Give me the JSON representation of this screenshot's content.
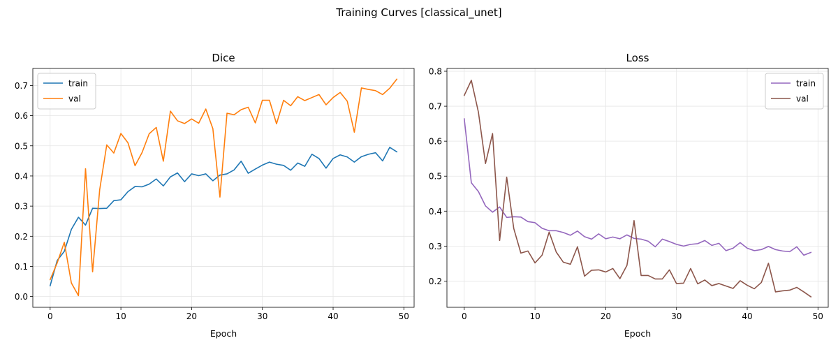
{
  "figure_title": "Training Curves [classical_unet]",
  "colors": {
    "train_dice": "#1f77b4",
    "val_dice": "#ff7f0e",
    "train_loss": "#9467bd",
    "val_loss": "#8c564b",
    "grid": "#e5e5e5"
  },
  "chart_data": [
    {
      "type": "line",
      "title": "Dice",
      "xlabel": "Epoch",
      "ylabel": "",
      "xlim": [
        -2.45,
        51.45
      ],
      "ylim": [
        -0.0356,
        0.7566
      ],
      "xticks": [
        0,
        10,
        20,
        30,
        40,
        50
      ],
      "yticks": [
        0.0,
        0.1,
        0.2,
        0.3,
        0.4,
        0.5,
        0.6,
        0.7
      ],
      "ytick_labels": [
        "0.0",
        "0.1",
        "0.2",
        "0.3",
        "0.4",
        "0.5",
        "0.6",
        "0.7"
      ],
      "grid": true,
      "legend_position": "upper left",
      "series": [
        {
          "name": "train",
          "color_key": "train_dice",
          "values": [
            0.036,
            0.12,
            0.15,
            0.223,
            0.263,
            0.237,
            0.293,
            0.292,
            0.293,
            0.318,
            0.321,
            0.348,
            0.365,
            0.364,
            0.373,
            0.39,
            0.367,
            0.397,
            0.41,
            0.381,
            0.407,
            0.401,
            0.407,
            0.384,
            0.403,
            0.407,
            0.42,
            0.449,
            0.409,
            0.423,
            0.436,
            0.446,
            0.439,
            0.435,
            0.419,
            0.443,
            0.432,
            0.472,
            0.458,
            0.426,
            0.458,
            0.47,
            0.463,
            0.446,
            0.464,
            0.472,
            0.477,
            0.45,
            0.495,
            0.48
          ]
        },
        {
          "name": "val",
          "color_key": "val_dice",
          "values": [
            0.056,
            0.112,
            0.18,
            0.045,
            0.003,
            0.424,
            0.082,
            0.354,
            0.503,
            0.476,
            0.541,
            0.51,
            0.434,
            0.478,
            0.54,
            0.561,
            0.449,
            0.615,
            0.583,
            0.574,
            0.589,
            0.575,
            0.622,
            0.557,
            0.33,
            0.608,
            0.603,
            0.62,
            0.628,
            0.576,
            0.651,
            0.651,
            0.573,
            0.651,
            0.633,
            0.663,
            0.65,
            0.66,
            0.67,
            0.636,
            0.66,
            0.677,
            0.648,
            0.545,
            0.692,
            0.687,
            0.683,
            0.67,
            0.691,
            0.721
          ]
        }
      ]
    },
    {
      "type": "line",
      "title": "Loss",
      "xlabel": "Epoch",
      "ylabel": "",
      "xlim": [
        -2.45,
        51.45
      ],
      "ylim": [
        0.125,
        0.808
      ],
      "xticks": [
        0,
        10,
        20,
        30,
        40,
        50
      ],
      "yticks": [
        0.2,
        0.3,
        0.4,
        0.5,
        0.6,
        0.7,
        0.8
      ],
      "ytick_labels": [
        "0.2",
        "0.3",
        "0.4",
        "0.5",
        "0.6",
        "0.7",
        "0.8"
      ],
      "grid": true,
      "legend_position": "upper right",
      "series": [
        {
          "name": "train",
          "color_key": "train_loss",
          "values": [
            0.664,
            0.481,
            0.456,
            0.415,
            0.397,
            0.412,
            0.382,
            0.384,
            0.383,
            0.37,
            0.367,
            0.351,
            0.344,
            0.344,
            0.339,
            0.331,
            0.343,
            0.327,
            0.32,
            0.335,
            0.321,
            0.326,
            0.321,
            0.332,
            0.322,
            0.32,
            0.314,
            0.298,
            0.32,
            0.313,
            0.305,
            0.3,
            0.305,
            0.307,
            0.316,
            0.302,
            0.308,
            0.287,
            0.294,
            0.31,
            0.294,
            0.287,
            0.29,
            0.299,
            0.29,
            0.286,
            0.284,
            0.298,
            0.274,
            0.282
          ]
        },
        {
          "name": "val",
          "color_key": "val_loss",
          "values": [
            0.731,
            0.774,
            0.683,
            0.536,
            0.622,
            0.316,
            0.497,
            0.35,
            0.28,
            0.286,
            0.252,
            0.274,
            0.34,
            0.283,
            0.254,
            0.248,
            0.298,
            0.214,
            0.231,
            0.232,
            0.226,
            0.236,
            0.207,
            0.245,
            0.373,
            0.216,
            0.216,
            0.206,
            0.206,
            0.232,
            0.193,
            0.194,
            0.236,
            0.192,
            0.203,
            0.187,
            0.193,
            0.186,
            0.179,
            0.201,
            0.188,
            0.178,
            0.196,
            0.251,
            0.169,
            0.172,
            0.174,
            0.182,
            0.169,
            0.155
          ]
        }
      ]
    }
  ]
}
